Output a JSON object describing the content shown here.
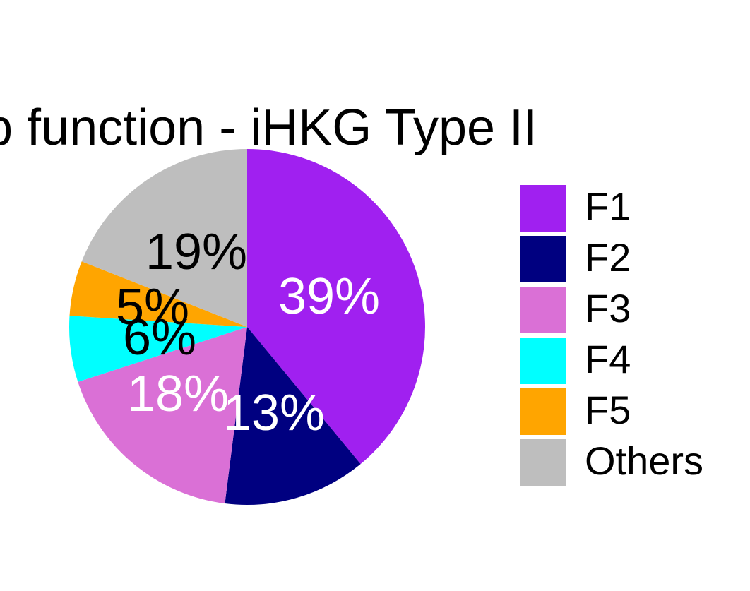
{
  "chart_data": {
    "type": "pie",
    "title": "p function - iHKG Type II",
    "slices": [
      {
        "name": "F1",
        "value": 39,
        "label": "39%",
        "color": "#a020f0",
        "label_color": "#ffffff"
      },
      {
        "name": "F2",
        "value": 13,
        "label": "13%",
        "color": "#000080",
        "label_color": "#ffffff"
      },
      {
        "name": "F3",
        "value": 18,
        "label": "18%",
        "color": "#da70d6",
        "label_color": "#ffffff"
      },
      {
        "name": "F4",
        "value": 6,
        "label": "6%",
        "color": "#00ffff",
        "label_color": "#000000"
      },
      {
        "name": "F5",
        "value": 5,
        "label": "5%",
        "color": "#ffa500",
        "label_color": "#000000"
      },
      {
        "name": "Others",
        "value": 19,
        "label": "19%",
        "color": "#bebebe",
        "label_color": "#000000"
      }
    ],
    "direction": "clockwise",
    "start": "top",
    "legend_position": "right"
  }
}
